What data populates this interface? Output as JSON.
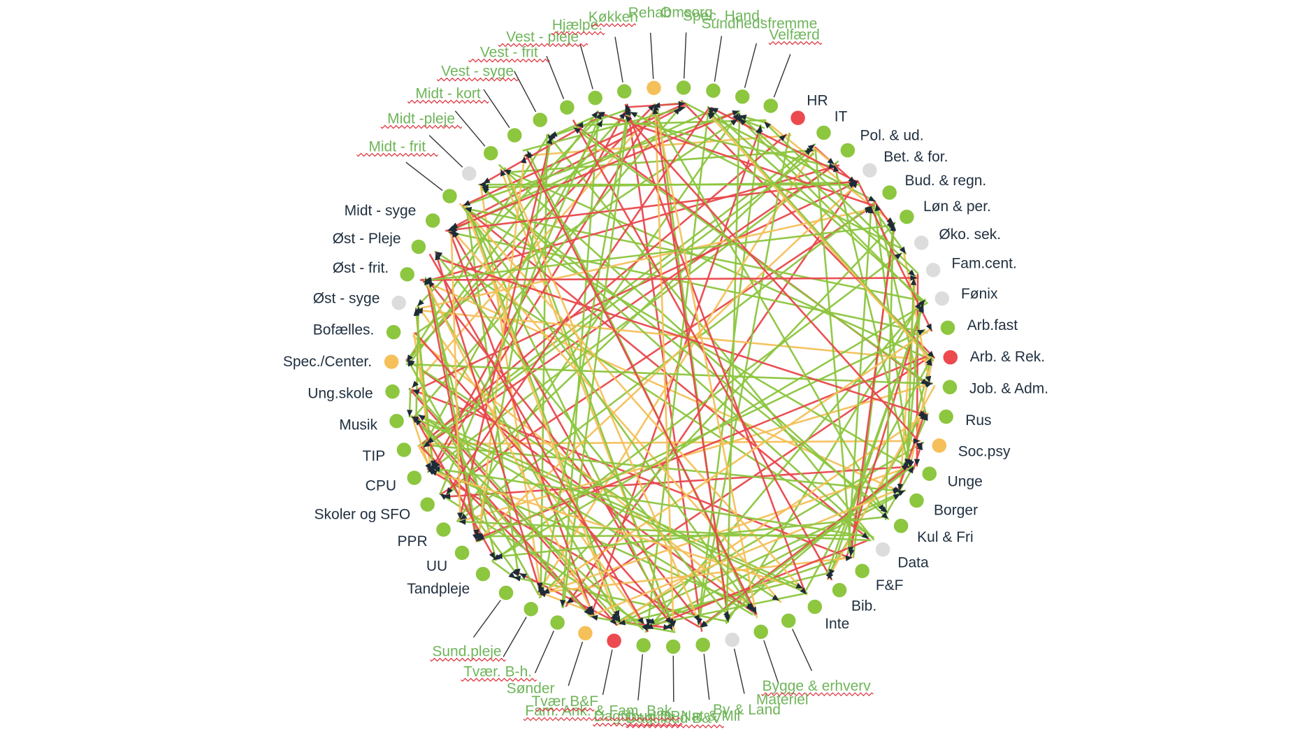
{
  "colors": {
    "green": "#8dc63f",
    "yellow": "#f5c05a",
    "red": "#ec4a4f",
    "gray": "#dcdcdc",
    "edge_green": "#8dc63f",
    "edge_yellow": "#f5c05a",
    "edge_red": "#e8484c",
    "label_dark": "#1f2f3f",
    "label_green": "#6fb55a"
  },
  "nodes": [
    {
      "label": "HR",
      "status": "red",
      "style": "dark"
    },
    {
      "label": "IT",
      "status": "green",
      "style": "dark"
    },
    {
      "label": "Pol. & ud.",
      "status": "green",
      "style": "dark"
    },
    {
      "label": "Bet. & for.",
      "status": "gray",
      "style": "dark"
    },
    {
      "label": "Bud. & regn.",
      "status": "green",
      "style": "dark"
    },
    {
      "label": "Løn & per.",
      "status": "green",
      "style": "dark"
    },
    {
      "label": "Øko. sek.",
      "status": "gray",
      "style": "dark"
    },
    {
      "label": "Fam.cent.",
      "status": "gray",
      "style": "dark"
    },
    {
      "label": "Fønix",
      "status": "gray",
      "style": "dark"
    },
    {
      "label": "Arb.fast",
      "status": "green",
      "style": "dark"
    },
    {
      "label": "Arb. & Rek.",
      "status": "red",
      "style": "dark"
    },
    {
      "label": "Job. & Adm.",
      "status": "green",
      "style": "dark"
    },
    {
      "label": "Rus",
      "status": "green",
      "style": "dark"
    },
    {
      "label": "Soc.psy",
      "status": "yellow",
      "style": "dark"
    },
    {
      "label": "Unge",
      "status": "green",
      "style": "dark"
    },
    {
      "label": "Borger",
      "status": "green",
      "style": "dark"
    },
    {
      "label": "Kul & Fri",
      "status": "green",
      "style": "dark"
    },
    {
      "label": "Data",
      "status": "gray",
      "style": "dark"
    },
    {
      "label": "F&F",
      "status": "green",
      "style": "dark"
    },
    {
      "label": "Bib.",
      "status": "green",
      "style": "dark"
    },
    {
      "label": "Inte",
      "status": "green",
      "style": "dark"
    },
    {
      "label": "Bygge & erhverv",
      "status": "green",
      "style": "green-underlined"
    },
    {
      "label": "Materiel",
      "status": "green",
      "style": "green"
    },
    {
      "label": "By & Land",
      "status": "gray",
      "style": "green"
    },
    {
      "label": "Nat & Mil",
      "status": "green",
      "style": "green"
    },
    {
      "label": "Dagtilbud B&V",
      "status": "green",
      "style": "green-underlined"
    },
    {
      "label": "Dagtilbud DP",
      "status": "green",
      "style": "green-underlined"
    },
    {
      "label": "Fam. Ank. & Fam. Bak.",
      "status": "red",
      "style": "green-underlined"
    },
    {
      "label": "Tvær B&F",
      "status": "yellow",
      "style": "green-underlined"
    },
    {
      "label": "Sønder",
      "status": "green",
      "style": "green"
    },
    {
      "label": "Tvær. B-h.",
      "status": "green",
      "style": "green-underlined"
    },
    {
      "label": "Sund.pleje",
      "status": "green",
      "style": "green-underlined"
    },
    {
      "label": "Tandpleje",
      "status": "green",
      "style": "dark"
    },
    {
      "label": "UU",
      "status": "green",
      "style": "dark"
    },
    {
      "label": "PPR",
      "status": "green",
      "style": "dark"
    },
    {
      "label": "Skoler og SFO",
      "status": "green",
      "style": "dark"
    },
    {
      "label": "CPU",
      "status": "green",
      "style": "dark"
    },
    {
      "label": "TIP",
      "status": "green",
      "style": "dark"
    },
    {
      "label": "Musik",
      "status": "green",
      "style": "dark"
    },
    {
      "label": "Ung.skole",
      "status": "green",
      "style": "dark"
    },
    {
      "label": "Spec./Center.",
      "status": "yellow",
      "style": "dark"
    },
    {
      "label": "Bofælles.",
      "status": "green",
      "style": "dark"
    },
    {
      "label": "Øst - syge",
      "status": "gray",
      "style": "dark"
    },
    {
      "label": "Øst - frit.",
      "status": "green",
      "style": "dark"
    },
    {
      "label": "Øst - Pleje",
      "status": "green",
      "style": "dark"
    },
    {
      "label": "Midt - syge",
      "status": "green",
      "style": "dark"
    },
    {
      "label": "Midt - frit",
      "status": "green",
      "style": "green-underlined"
    },
    {
      "label": "Midt -pleje",
      "status": "gray",
      "style": "green-underlined"
    },
    {
      "label": "Midt - kort",
      "status": "green",
      "style": "green-underlined"
    },
    {
      "label": "Vest - syge",
      "status": "green",
      "style": "green-underlined"
    },
    {
      "label": "Vest - frit",
      "status": "green",
      "style": "green-underlined"
    },
    {
      "label": "Vest - pleje",
      "status": "green",
      "style": "green-underlined"
    },
    {
      "label": "Hjælpe.",
      "status": "green",
      "style": "green-underlined"
    },
    {
      "label": "Køkken",
      "status": "green",
      "style": "green-underlined"
    },
    {
      "label": "Rehab",
      "status": "yellow",
      "style": "green"
    },
    {
      "label": "Omsorg",
      "status": "green",
      "style": "green"
    },
    {
      "label": "Spec. Hand.",
      "status": "green",
      "style": "green"
    },
    {
      "label": "Sundhedsfremme",
      "status": "green",
      "style": "green"
    },
    {
      "label": "Velfærd",
      "status": "green",
      "style": "green-underlined"
    }
  ],
  "edge_counts": {
    "green": 120,
    "yellow": 40,
    "red": 60
  }
}
